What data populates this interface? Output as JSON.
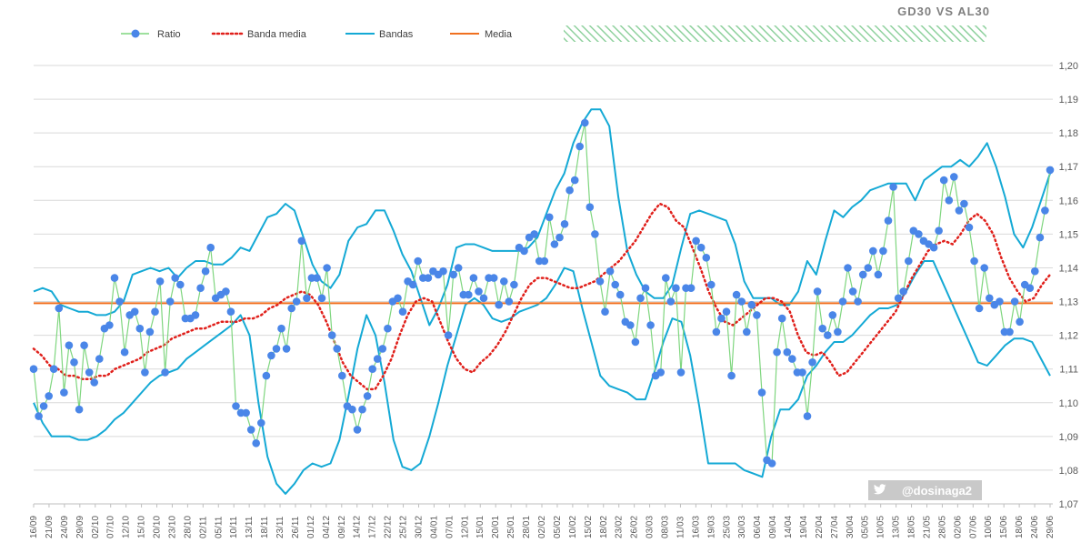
{
  "chart_data": {
    "type": "line",
    "title": "GD30 VS AL30",
    "watermark": "@dosinaga2",
    "ylim": [
      1.07,
      1.2
    ],
    "y_ticks": [
      "1,07",
      "1,08",
      "1,09",
      "1,10",
      "1,11",
      "1,12",
      "1,13",
      "1,14",
      "1,15",
      "1,16",
      "1,17",
      "1,18",
      "1,19",
      "1,20"
    ],
    "grid": "horizontal",
    "legend_position": "top",
    "x_labels": [
      "16/09",
      "21/09",
      "24/09",
      "29/09",
      "02/10",
      "07/10",
      "12/10",
      "15/10",
      "20/10",
      "23/10",
      "28/10",
      "02/11",
      "05/11",
      "10/11",
      "13/11",
      "18/11",
      "23/11",
      "26/11",
      "01/12",
      "04/12",
      "09/12",
      "14/12",
      "17/12",
      "22/12",
      "25/12",
      "30/12",
      "04/01",
      "07/01",
      "12/01",
      "15/01",
      "20/01",
      "25/01",
      "28/01",
      "02/02",
      "05/02",
      "10/02",
      "15/02",
      "18/02",
      "23/02",
      "26/02",
      "03/03",
      "08/03",
      "11/03",
      "16/03",
      "19/03",
      "25/03",
      "30/03",
      "06/04",
      "09/04",
      "14/04",
      "19/04",
      "22/04",
      "27/04",
      "30/04",
      "05/05",
      "10/05",
      "13/05",
      "18/05",
      "21/05",
      "28/05",
      "02/06",
      "07/06",
      "10/06",
      "15/06",
      "18/06",
      "24/06",
      "29/06"
    ],
    "colors": {
      "ratio_line": "#7fd67f",
      "ratio_marker": "#4a86e8",
      "banda_media": "#e0201b",
      "bandas": "#14a9d5",
      "media": "#f07020",
      "grid": "#d9d9d9",
      "watermark_bg": "#bfbfbf",
      "hatch": "#8fd19e"
    },
    "series": [
      {
        "name": "Ratio",
        "style": "line-markers",
        "values": [
          1.11,
          1.096,
          1.099,
          1.102,
          1.11,
          1.128,
          1.103,
          1.117,
          1.112,
          1.098,
          1.117,
          1.109,
          1.106,
          1.113,
          1.122,
          1.123,
          1.137,
          1.13,
          1.115,
          1.126,
          1.127,
          1.122,
          1.109,
          1.121,
          1.127,
          1.136,
          1.109,
          1.13,
          1.137,
          1.135,
          1.125,
          1.125,
          1.126,
          1.134,
          1.139,
          1.146,
          1.131,
          1.132,
          1.133,
          1.127,
          1.099,
          1.097,
          1.097,
          1.092,
          1.088,
          1.094,
          1.108,
          1.114,
          1.116,
          1.122,
          1.116,
          1.128,
          1.13,
          1.148,
          1.131,
          1.137,
          1.137,
          1.131,
          1.14,
          1.12,
          1.116,
          1.108,
          1.099,
          1.098,
          1.092,
          1.098,
          1.102,
          1.11,
          1.113,
          1.116,
          1.122,
          1.13,
          1.131,
          1.127,
          1.136,
          1.135,
          1.142,
          1.137,
          1.137,
          1.139,
          1.138,
          1.139,
          1.12,
          1.138,
          1.14,
          1.132,
          1.132,
          1.137,
          1.133,
          1.131,
          1.137,
          1.137,
          1.129,
          1.136,
          1.13,
          1.135,
          1.146,
          1.145,
          1.149,
          1.15,
          1.142,
          1.142,
          1.155,
          1.147,
          1.149,
          1.153,
          1.163,
          1.166,
          1.176,
          1.183,
          1.158,
          1.15,
          1.136,
          1.127,
          1.139,
          1.135,
          1.132,
          1.124,
          1.123,
          1.118,
          1.131,
          1.134,
          1.123,
          1.108,
          1.109,
          1.137,
          1.13,
          1.134,
          1.109,
          1.134,
          1.134,
          1.148,
          1.146,
          1.143,
          1.135,
          1.121,
          1.125,
          1.127,
          1.108,
          1.132,
          1.13,
          1.121,
          1.129,
          1.126,
          1.103,
          1.083,
          1.082,
          1.115,
          1.125,
          1.115,
          1.113,
          1.109,
          1.109,
          1.096,
          1.112,
          1.133,
          1.122,
          1.12,
          1.126,
          1.121,
          1.13,
          1.14,
          1.133,
          1.13,
          1.138,
          1.14,
          1.145,
          1.138,
          1.145,
          1.154,
          1.164,
          1.131,
          1.133,
          1.142,
          1.151,
          1.15,
          1.148,
          1.147,
          1.146,
          1.151,
          1.166,
          1.16,
          1.167,
          1.157,
          1.159,
          1.152,
          1.142,
          1.128,
          1.14,
          1.131,
          1.129,
          1.13,
          1.121,
          1.121,
          1.13,
          1.124,
          1.135,
          1.134,
          1.139,
          1.149,
          1.157,
          1.169
        ]
      },
      {
        "name": "Banda media",
        "style": "dotted",
        "values": [
          1.116,
          1.114,
          1.111,
          1.11,
          1.108,
          1.108,
          1.107,
          1.107,
          1.108,
          1.108,
          1.11,
          1.111,
          1.112,
          1.113,
          1.115,
          1.116,
          1.117,
          1.119,
          1.12,
          1.121,
          1.122,
          1.122,
          1.123,
          1.124,
          1.124,
          1.124,
          1.125,
          1.125,
          1.126,
          1.128,
          1.129,
          1.131,
          1.132,
          1.133,
          1.132,
          1.129,
          1.124,
          1.118,
          1.112,
          1.108,
          1.106,
          1.104,
          1.104,
          1.108,
          1.113,
          1.12,
          1.126,
          1.13,
          1.131,
          1.13,
          1.124,
          1.118,
          1.113,
          1.11,
          1.109,
          1.112,
          1.114,
          1.117,
          1.121,
          1.126,
          1.131,
          1.135,
          1.137,
          1.137,
          1.136,
          1.135,
          1.134,
          1.134,
          1.135,
          1.136,
          1.138,
          1.14,
          1.142,
          1.145,
          1.148,
          1.152,
          1.156,
          1.159,
          1.158,
          1.154,
          1.152,
          1.146,
          1.14,
          1.133,
          1.128,
          1.124,
          1.123,
          1.125,
          1.127,
          1.129,
          1.131,
          1.131,
          1.13,
          1.127,
          1.12,
          1.115,
          1.114,
          1.115,
          1.112,
          1.108,
          1.109,
          1.112,
          1.115,
          1.118,
          1.121,
          1.124,
          1.127,
          1.132,
          1.137,
          1.141,
          1.145,
          1.147,
          1.148,
          1.147,
          1.15,
          1.154,
          1.156,
          1.154,
          1.15,
          1.143,
          1.137,
          1.133,
          1.13,
          1.131,
          1.135,
          1.138
        ]
      },
      {
        "name": "Bandas",
        "part": "upper",
        "style": "line",
        "values": [
          1.133,
          1.134,
          1.133,
          1.129,
          1.128,
          1.127,
          1.127,
          1.126,
          1.126,
          1.127,
          1.13,
          1.138,
          1.139,
          1.14,
          1.139,
          1.14,
          1.137,
          1.14,
          1.142,
          1.142,
          1.141,
          1.141,
          1.143,
          1.146,
          1.145,
          1.15,
          1.155,
          1.156,
          1.159,
          1.157,
          1.149,
          1.141,
          1.136,
          1.134,
          1.138,
          1.148,
          1.152,
          1.153,
          1.157,
          1.157,
          1.151,
          1.144,
          1.139,
          1.131,
          1.123,
          1.128,
          1.135,
          1.146,
          1.147,
          1.147,
          1.146,
          1.145,
          1.145,
          1.145,
          1.145,
          1.146,
          1.149,
          1.156,
          1.163,
          1.168,
          1.177,
          1.183,
          1.187,
          1.187,
          1.182,
          1.161,
          1.145,
          1.138,
          1.133,
          1.131,
          1.131,
          1.135,
          1.146,
          1.156,
          1.157,
          1.156,
          1.155,
          1.154,
          1.147,
          1.136,
          1.131,
          1.131,
          1.131,
          1.129,
          1.129,
          1.133,
          1.142,
          1.138,
          1.148,
          1.157,
          1.155,
          1.158,
          1.16,
          1.163,
          1.164,
          1.165,
          1.165,
          1.165,
          1.16,
          1.166,
          1.168,
          1.17,
          1.17,
          1.172,
          1.17,
          1.173,
          1.177,
          1.17,
          1.161,
          1.15,
          1.146,
          1.152,
          1.16,
          1.168
        ]
      },
      {
        "name": "Bandas",
        "part": "lower",
        "style": "line",
        "values": [
          1.1,
          1.094,
          1.09,
          1.09,
          1.09,
          1.089,
          1.089,
          1.09,
          1.092,
          1.095,
          1.097,
          1.1,
          1.103,
          1.106,
          1.108,
          1.109,
          1.11,
          1.113,
          1.115,
          1.117,
          1.119,
          1.121,
          1.123,
          1.126,
          1.12,
          1.1,
          1.084,
          1.076,
          1.073,
          1.076,
          1.08,
          1.082,
          1.081,
          1.082,
          1.089,
          1.102,
          1.116,
          1.126,
          1.12,
          1.106,
          1.089,
          1.081,
          1.08,
          1.082,
          1.09,
          1.1,
          1.111,
          1.12,
          1.129,
          1.131,
          1.129,
          1.125,
          1.124,
          1.125,
          1.127,
          1.128,
          1.129,
          1.131,
          1.135,
          1.14,
          1.139,
          1.128,
          1.118,
          1.108,
          1.105,
          1.104,
          1.103,
          1.101,
          1.101,
          1.109,
          1.118,
          1.125,
          1.124,
          1.114,
          1.099,
          1.082,
          1.082,
          1.082,
          1.082,
          1.08,
          1.079,
          1.078,
          1.09,
          1.098,
          1.098,
          1.101,
          1.108,
          1.111,
          1.115,
          1.118,
          1.118,
          1.12,
          1.123,
          1.126,
          1.128,
          1.128,
          1.129,
          1.133,
          1.138,
          1.142,
          1.142,
          1.136,
          1.13,
          1.124,
          1.118,
          1.112,
          1.111,
          1.114,
          1.117,
          1.119,
          1.119,
          1.118,
          1.113,
          1.108
        ]
      },
      {
        "name": "Media",
        "style": "constant",
        "values": [
          1.1295,
          1.1295
        ]
      }
    ]
  }
}
